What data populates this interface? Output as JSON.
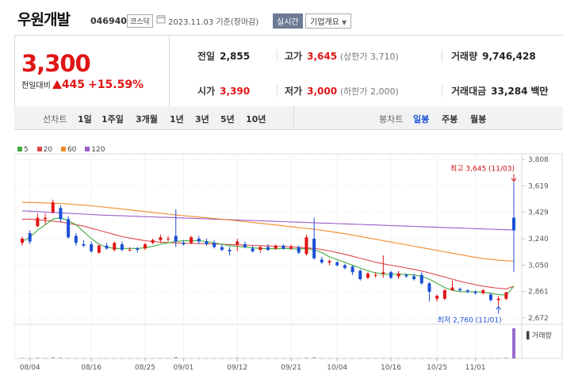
{
  "header": {
    "name": "우원개발",
    "code": "046940",
    "market": "코스닥",
    "date": "2023.11.03 기준(장마감)",
    "realtime_label": "실시간",
    "company_label": "기업개요"
  },
  "quote": {
    "price": "3,300",
    "change_label": "전일대비",
    "change": "445",
    "change_pct": "+15.59%",
    "prev_close_label": "전일",
    "prev_close": "2,855",
    "open_label": "시가",
    "open": "3,390",
    "high_label": "고가",
    "high": "3,645",
    "upper_limit": "(상한가 3,710)",
    "low_label": "저가",
    "low": "3,000",
    "lower_limit": "(하한가 2,000)",
    "volume_label": "거래량",
    "volume": "9,746,428",
    "amount_label": "거래대금",
    "amount": "33,284",
    "amount_unit": "백만",
    "up_color": "#e01515",
    "down_color": "#1a4fd6"
  },
  "toolbar": {
    "line_label": "선차트",
    "line_items": [
      "1일",
      "1주일",
      "3개월",
      "1년",
      "3년",
      "5년",
      "10년"
    ],
    "candle_label": "봉차트",
    "candle_items": [
      "일봉",
      "주봉",
      "월봉"
    ],
    "active_candle": "일봉"
  },
  "chart_data": {
    "type": "candlestick",
    "legend": [
      {
        "name": "5",
        "color": "#3daa3d"
      },
      {
        "name": "20",
        "color": "#e04a4a"
      },
      {
        "name": "60",
        "color": "#f08a28"
      },
      {
        "name": "120",
        "color": "#9a5cc8"
      }
    ],
    "y_ticks": [
      "3,808",
      "3,619",
      "3,429",
      "3,240",
      "3,050",
      "2,861",
      "2,672"
    ],
    "ylim": [
      2672,
      3808
    ],
    "x_ticks": [
      "08/04",
      "08/16",
      "08/25",
      "09/01",
      "09/12",
      "09/21",
      "10/04",
      "10/16",
      "10/25",
      "11/01"
    ],
    "x_tick_index": [
      1,
      9,
      16,
      21,
      28,
      35,
      41,
      48,
      54,
      59
    ],
    "max_annotation": "최고 3,645 (11/03)",
    "min_annotation": "최저 2,760 (11/01)",
    "volume_label": "거래량",
    "candles": [
      [
        3210,
        3240,
        3190,
        3255
      ],
      [
        3280,
        3220,
        3200,
        3300
      ],
      [
        3330,
        3390,
        3320,
        3420
      ],
      [
        3380,
        3390,
        3340,
        3420
      ],
      [
        3430,
        3500,
        3420,
        3520
      ],
      [
        3460,
        3380,
        3360,
        3480
      ],
      [
        3380,
        3250,
        3240,
        3400
      ],
      [
        3260,
        3210,
        3190,
        3280
      ],
      [
        3200,
        3190,
        3180,
        3230
      ],
      [
        3200,
        3150,
        3140,
        3220
      ],
      [
        3140,
        3190,
        3130,
        3200
      ],
      [
        3190,
        3170,
        3160,
        3210
      ],
      [
        3160,
        3210,
        3150,
        3220
      ],
      [
        3200,
        3160,
        3150,
        3220
      ],
      [
        3160,
        3160,
        3150,
        3180
      ],
      [
        3170,
        3160,
        3140,
        3180
      ],
      [
        3170,
        3200,
        3160,
        3210
      ],
      [
        3210,
        3230,
        3200,
        3240
      ],
      [
        3230,
        3250,
        3210,
        3270
      ],
      [
        3240,
        3240,
        3220,
        3260
      ],
      [
        3260,
        3220,
        3180,
        3450
      ],
      [
        3210,
        3200,
        3190,
        3230
      ],
      [
        3210,
        3250,
        3200,
        3260
      ],
      [
        3240,
        3220,
        3200,
        3260
      ],
      [
        3220,
        3200,
        3190,
        3240
      ],
      [
        3210,
        3180,
        3170,
        3230
      ],
      [
        3180,
        3160,
        3150,
        3200
      ],
      [
        3160,
        3150,
        3120,
        3180
      ],
      [
        3200,
        3220,
        3150,
        3240
      ],
      [
        3200,
        3180,
        3170,
        3220
      ],
      [
        3170,
        3150,
        3140,
        3190
      ],
      [
        3160,
        3180,
        3140,
        3190
      ],
      [
        3180,
        3160,
        3150,
        3200
      ],
      [
        3170,
        3190,
        3160,
        3200
      ],
      [
        3190,
        3170,
        3160,
        3200
      ],
      [
        3170,
        3180,
        3160,
        3200
      ],
      [
        3180,
        3140,
        3130,
        3190
      ],
      [
        3130,
        3250,
        3120,
        3270
      ],
      [
        3240,
        3100,
        3090,
        3390
      ],
      [
        3090,
        3070,
        3060,
        3110
      ],
      [
        3070,
        3080,
        3050,
        3090
      ],
      [
        3070,
        3050,
        3040,
        3080
      ],
      [
        3050,
        3030,
        3020,
        3060
      ],
      [
        3040,
        3000,
        2980,
        3050
      ],
      [
        3010,
        2950,
        2940,
        3020
      ],
      [
        2960,
        2990,
        2950,
        3000
      ],
      [
        2980,
        2980,
        2960,
        3000
      ],
      [
        2990,
        3000,
        2960,
        3120
      ],
      [
        3000,
        2960,
        2950,
        3010
      ],
      [
        2970,
        2990,
        2950,
        3010
      ],
      [
        2980,
        2970,
        2960,
        2990
      ],
      [
        2970,
        2950,
        2940,
        2990
      ],
      [
        2980,
        2920,
        2910,
        3000
      ],
      [
        2920,
        2860,
        2790,
        2930
      ],
      [
        2810,
        2830,
        2790,
        2840
      ],
      [
        2810,
        2870,
        2800,
        2880
      ],
      [
        2870,
        2890,
        2870,
        2940
      ],
      [
        2880,
        2870,
        2860,
        2890
      ],
      [
        2870,
        2860,
        2850,
        2880
      ],
      [
        2860,
        2850,
        2840,
        2870
      ],
      [
        2850,
        2870,
        2840,
        2880
      ],
      [
        2840,
        2800,
        2790,
        2850
      ],
      [
        2800,
        2810,
        2760,
        2830
      ],
      [
        2810,
        2855,
        2800,
        2860
      ],
      [
        3390,
        3300,
        3000,
        3645
      ]
    ],
    "ma5": [
      3220,
      3250,
      3300,
      3340,
      3380,
      3390,
      3370,
      3340,
      3290,
      3240,
      3200,
      3180,
      3170,
      3170,
      3170,
      3170,
      3175,
      3185,
      3200,
      3210,
      3220,
      3225,
      3225,
      3225,
      3220,
      3210,
      3200,
      3190,
      3185,
      3180,
      3175,
      3170,
      3168,
      3168,
      3170,
      3168,
      3165,
      3170,
      3160,
      3140,
      3110,
      3090,
      3070,
      3050,
      3030,
      3010,
      2995,
      2985,
      2985,
      2985,
      2985,
      2980,
      2970,
      2950,
      2920,
      2890,
      2870,
      2860,
      2860,
      2860,
      2855,
      2850,
      2840,
      2835,
      2900
    ],
    "ma20": [
      3380,
      3380,
      3375,
      3370,
      3365,
      3360,
      3350,
      3340,
      3330,
      3315,
      3300,
      3285,
      3270,
      3255,
      3245,
      3235,
      3225,
      3220,
      3215,
      3212,
      3210,
      3208,
      3206,
      3205,
      3203,
      3202,
      3200,
      3198,
      3196,
      3194,
      3192,
      3190,
      3188,
      3186,
      3184,
      3182,
      3178,
      3174,
      3170,
      3162,
      3152,
      3140,
      3128,
      3114,
      3100,
      3086,
      3072,
      3060,
      3050,
      3040,
      3030,
      3020,
      3008,
      2995,
      2980,
      2965,
      2950,
      2935,
      2922,
      2910,
      2900,
      2892,
      2885,
      2880,
      2900
    ],
    "ma60": [
      3500,
      3500,
      3498,
      3496,
      3494,
      3492,
      3488,
      3484,
      3480,
      3476,
      3470,
      3464,
      3458,
      3452,
      3446,
      3440,
      3434,
      3428,
      3422,
      3416,
      3410,
      3405,
      3400,
      3395,
      3390,
      3385,
      3380,
      3374,
      3368,
      3362,
      3356,
      3350,
      3344,
      3338,
      3332,
      3326,
      3320,
      3314,
      3308,
      3300,
      3292,
      3284,
      3276,
      3266,
      3256,
      3246,
      3236,
      3226,
      3216,
      3206,
      3196,
      3186,
      3176,
      3166,
      3156,
      3146,
      3136,
      3126,
      3116,
      3106,
      3098,
      3092,
      3086,
      3082,
      3080
    ],
    "ma120": [
      3440,
      3437,
      3434,
      3431,
      3428,
      3425,
      3422,
      3419,
      3416,
      3413,
      3410,
      3408,
      3406,
      3404,
      3402,
      3400,
      3398,
      3396,
      3394,
      3392,
      3390,
      3388,
      3386,
      3384,
      3382,
      3380,
      3378,
      3376,
      3374,
      3372,
      3370,
      3368,
      3366,
      3364,
      3362,
      3360,
      3358,
      3356,
      3354,
      3352,
      3350,
      3348,
      3346,
      3344,
      3342,
      3340,
      3338,
      3336,
      3334,
      3332,
      3330,
      3328,
      3326,
      3324,
      3322,
      3320,
      3318,
      3316,
      3314,
      3312,
      3310,
      3308,
      3306,
      3304,
      3302
    ],
    "volumes": [
      2,
      1,
      3,
      2,
      4,
      3,
      2,
      1,
      1,
      1,
      1,
      1,
      1,
      1,
      1,
      1,
      1,
      1,
      2,
      1,
      5,
      1,
      1,
      1,
      1,
      1,
      1,
      1,
      2,
      1,
      1,
      1,
      1,
      1,
      1,
      1,
      1,
      3,
      4,
      1,
      1,
      1,
      1,
      1,
      1,
      1,
      1,
      2,
      1,
      1,
      1,
      1,
      1,
      2,
      1,
      1,
      1,
      1,
      1,
      1,
      1,
      1,
      2,
      3,
      100
    ]
  }
}
